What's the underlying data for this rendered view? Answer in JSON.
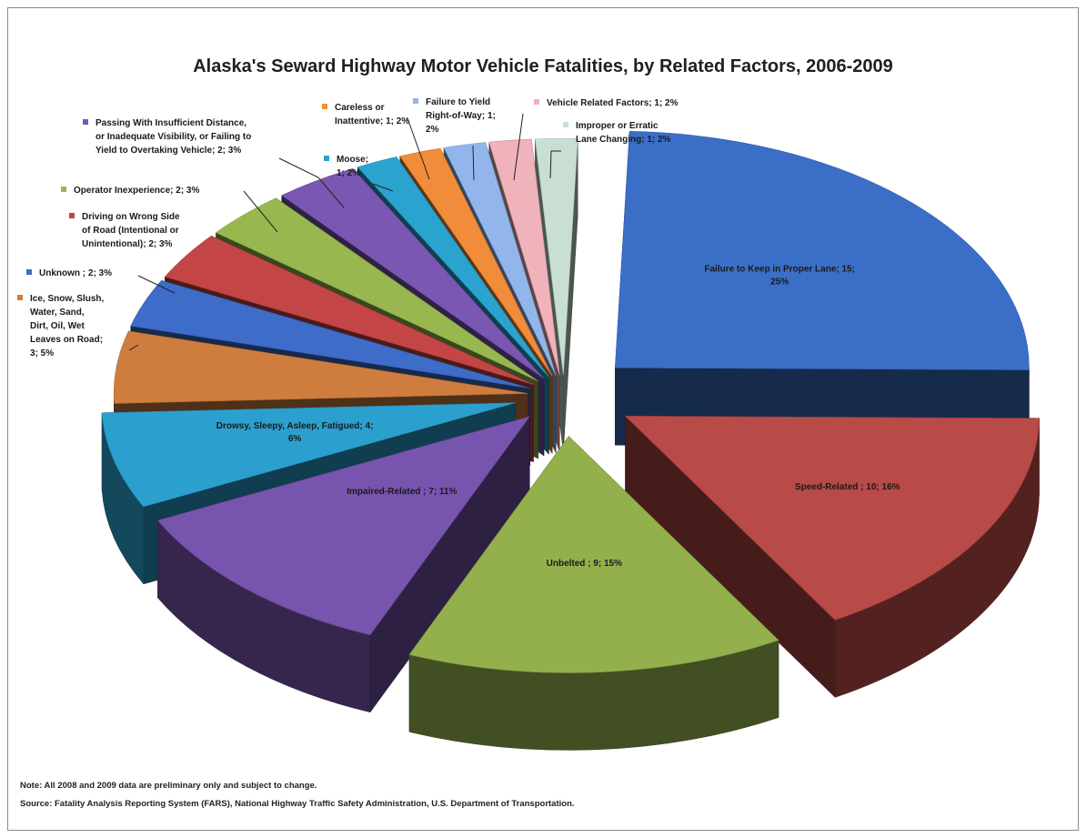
{
  "chart_data": {
    "type": "pie",
    "title": "Alaska's Seward Highway Motor Vehicle Fatalities, by Related Factors, 2006-2009",
    "slices": [
      {
        "key": "lane",
        "name": "Failure to Keep in Proper Lane",
        "value": 15,
        "label": "Failure to Keep in Proper Lane; 15; 25%",
        "color": "#3b6fc7"
      },
      {
        "key": "speed",
        "name": "Speed-Related",
        "value": 10,
        "label": "Speed-Related ; 10; 16%",
        "color": "#b84a48"
      },
      {
        "key": "unbelted",
        "name": "Unbelted",
        "value": 9,
        "label": "Unbelted ; 9; 15%",
        "color": "#93b04d"
      },
      {
        "key": "impaired",
        "name": "Impaired-Related",
        "value": 7,
        "label": "Impaired-Related ; 7; 11%",
        "color": "#7755ae"
      },
      {
        "key": "drowsy",
        "name": "Drowsy, Sleepy, Asleep, Fatigued",
        "value": 4,
        "label": "Drowsy, Sleepy, Asleep, Fatigued; 4; 6%",
        "color": "#2ba0cf"
      },
      {
        "key": "ice",
        "name": "Ice, Snow, Slush, Water, Sand, Dirt, Oil, Wet Leaves on Road",
        "value": 3,
        "label": "Ice, Snow, Slush, Water, Sand, Dirt, Oil, Wet Leaves on Road; 3; 5%",
        "color": "#cf7d3e"
      },
      {
        "key": "unknown",
        "name": "Unknown",
        "value": 2,
        "label": "Unknown ; 2; 3%",
        "color": "#3d6cc9"
      },
      {
        "key": "wrongside",
        "name": "Driving on Wrong Side of Road (Intentional or Unintentional)",
        "value": 2,
        "label": "Driving on Wrong Side of Road (Intentional or Unintentional); 2; 3%",
        "color": "#c44545"
      },
      {
        "key": "inexp",
        "name": "Operator Inexperience",
        "value": 2,
        "label": "Operator Inexperience; 2; 3%",
        "color": "#98b84f"
      },
      {
        "key": "passing",
        "name": "Passing With Insufficient Distance, or Inadequate Visibility, or Failing to Yield to Overtaking Vehicle",
        "value": 2,
        "label": "Passing With Insufficient Distance, or Inadequate Visibility, or Failing to Yield to Overtaking Vehicle; 2; 3%",
        "color": "#7a57b3"
      },
      {
        "key": "moose",
        "name": "Moose",
        "value": 1,
        "label": "Moose; 1; 2%",
        "color": "#2aa3cf"
      },
      {
        "key": "careless",
        "name": "Careless or Inattentive",
        "value": 1,
        "label": "Careless or Inattentive; 1; 2%",
        "color": "#f08c3a"
      },
      {
        "key": "yield",
        "name": "Failure to Yield Right-of-Way",
        "value": 1,
        "label": "Failure to Yield Right-of-Way; 1; 2%",
        "color": "#92b6ec"
      },
      {
        "key": "vehicle",
        "name": "Vehicle Related Factors",
        "value": 1,
        "label": "Vehicle Related Factors; 1; 2%",
        "color": "#f0b2bb"
      },
      {
        "key": "lanechange",
        "name": "Improper or Erratic Lane Changing",
        "value": 1,
        "label": "Improper or Erratic Lane Changing; 1; 2%",
        "color": "#c9dfd2"
      }
    ],
    "external_labels": {
      "passing": [
        "Passing With Insufficient Distance,",
        "or Inadequate Visibility, or Failing to",
        "Yield to Overtaking Vehicle; 2; 3%"
      ],
      "careless": [
        "Careless or",
        "Inattentive; 1; 2%"
      ],
      "yield": [
        "Failure to Yield",
        "Right-of-Way; 1;",
        "2%"
      ],
      "vehicle": [
        "Vehicle Related Factors; 1; 2%"
      ],
      "lanechange": [
        "Improper or Erratic",
        "Lane Changing; 1; 2%"
      ],
      "moose": [
        "Moose;",
        "1; 2%"
      ],
      "inexp": [
        "Operator Inexperience; 2; 3%"
      ],
      "wrongside": [
        "Driving on Wrong Side",
        "of Road (Intentional or",
        "Unintentional); 2; 3%"
      ],
      "unknown": [
        "Unknown ; 2; 3%"
      ],
      "ice": [
        "Ice, Snow, Slush,",
        "Water, Sand,",
        "Dirt, Oil, Wet",
        "Leaves on Road;",
        "3; 5%"
      ]
    },
    "internal_labels": {
      "lane": [
        "Failure to Keep in Proper Lane; 15;",
        "25%"
      ],
      "speed": [
        "Speed-Related ; 10; 16%"
      ],
      "unbelted": [
        "Unbelted ; 9; 15%"
      ],
      "impaired": [
        "Impaired-Related ; 7; 11%"
      ],
      "drowsy": [
        "Drowsy, Sleepy, Asleep, Fatigued; 4;",
        "6%"
      ]
    }
  },
  "footer": {
    "note": "Note: All 2008 and 2009 data are preliminary only and subject to change.",
    "source": "Source: Fatality Analysis Reporting System (FARS), National Highway Traffic Safety Administration, U.S. Department of Transportation."
  }
}
